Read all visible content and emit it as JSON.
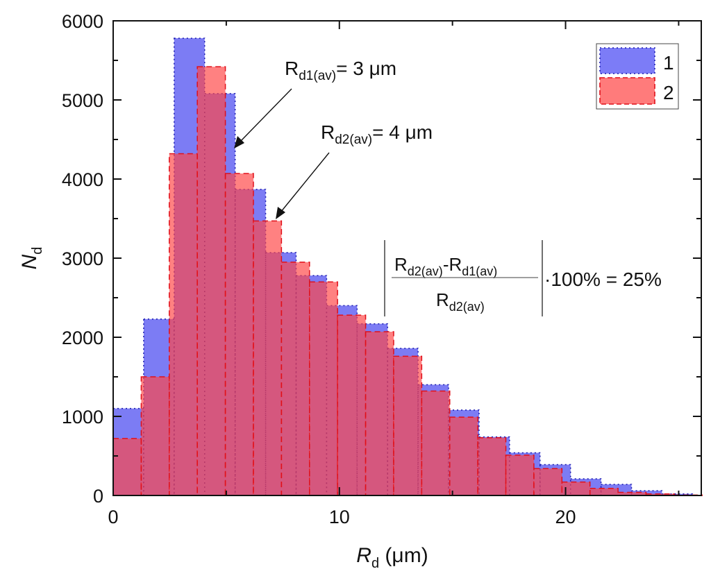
{
  "chart_data": {
    "type": "bar",
    "subtype": "overlapping-histogram",
    "title": "",
    "xlabel": "R_d (μm)",
    "xlabel_main": "R",
    "xlabel_sub": "d",
    "xlabel_unit": " (μm)",
    "ylabel": "N_d",
    "ylabel_main": "N",
    "ylabel_sub": "d",
    "xlim": [
      0,
      26
    ],
    "ylim": [
      0,
      6000
    ],
    "xticks": [
      0,
      10,
      20
    ],
    "xtick_labels": [
      "0",
      "10",
      "20"
    ],
    "yticks": [
      0,
      1000,
      2000,
      3000,
      4000,
      5000,
      6000
    ],
    "ytick_labels": [
      "0",
      "1000",
      "2000",
      "3000",
      "4000",
      "5000",
      "6000"
    ],
    "grid": false,
    "legend": {
      "position": "top-right",
      "entries": [
        "1",
        "2"
      ]
    },
    "series": [
      {
        "name": "1",
        "color": "#6a6af5",
        "edge_color": "#1a1ab0",
        "bin_start": 0,
        "bin_width": 1.348,
        "values": [
          1100,
          2230,
          5780,
          5080,
          3870,
          3070,
          2780,
          2400,
          2170,
          1860,
          1400,
          1080,
          740,
          540,
          390,
          210,
          140,
          60,
          20
        ]
      },
      {
        "name": "2",
        "color": "#ff6a6a",
        "edge_color": "#e0101a",
        "bin_start": 0,
        "bin_width": 1.24,
        "values": [
          720,
          1500,
          4320,
          5420,
          4070,
          3470,
          2950,
          2700,
          2280,
          2070,
          1760,
          1320,
          990,
          730,
          510,
          340,
          170,
          90,
          40,
          20,
          5
        ]
      }
    ],
    "annotations": [
      {
        "text_main": "R",
        "text_sub": "d1(av)",
        "text_rest": "= 3 μm",
        "points_to_x": 5.3,
        "points_to_y": 4380
      },
      {
        "text_main": "R",
        "text_sub": "d2(av)",
        "text_rest": "= 4 μm",
        "points_to_x": 7.1,
        "points_to_y": 3480
      }
    ],
    "formula": {
      "numerator_a_main": "R",
      "numerator_a_sub": "d2(av)",
      "minus": "-",
      "numerator_b_main": "R",
      "numerator_b_sub": "d1(av)",
      "denominator_main": "R",
      "denominator_sub": "d2(av)",
      "tail": "·100% = 25%"
    }
  }
}
